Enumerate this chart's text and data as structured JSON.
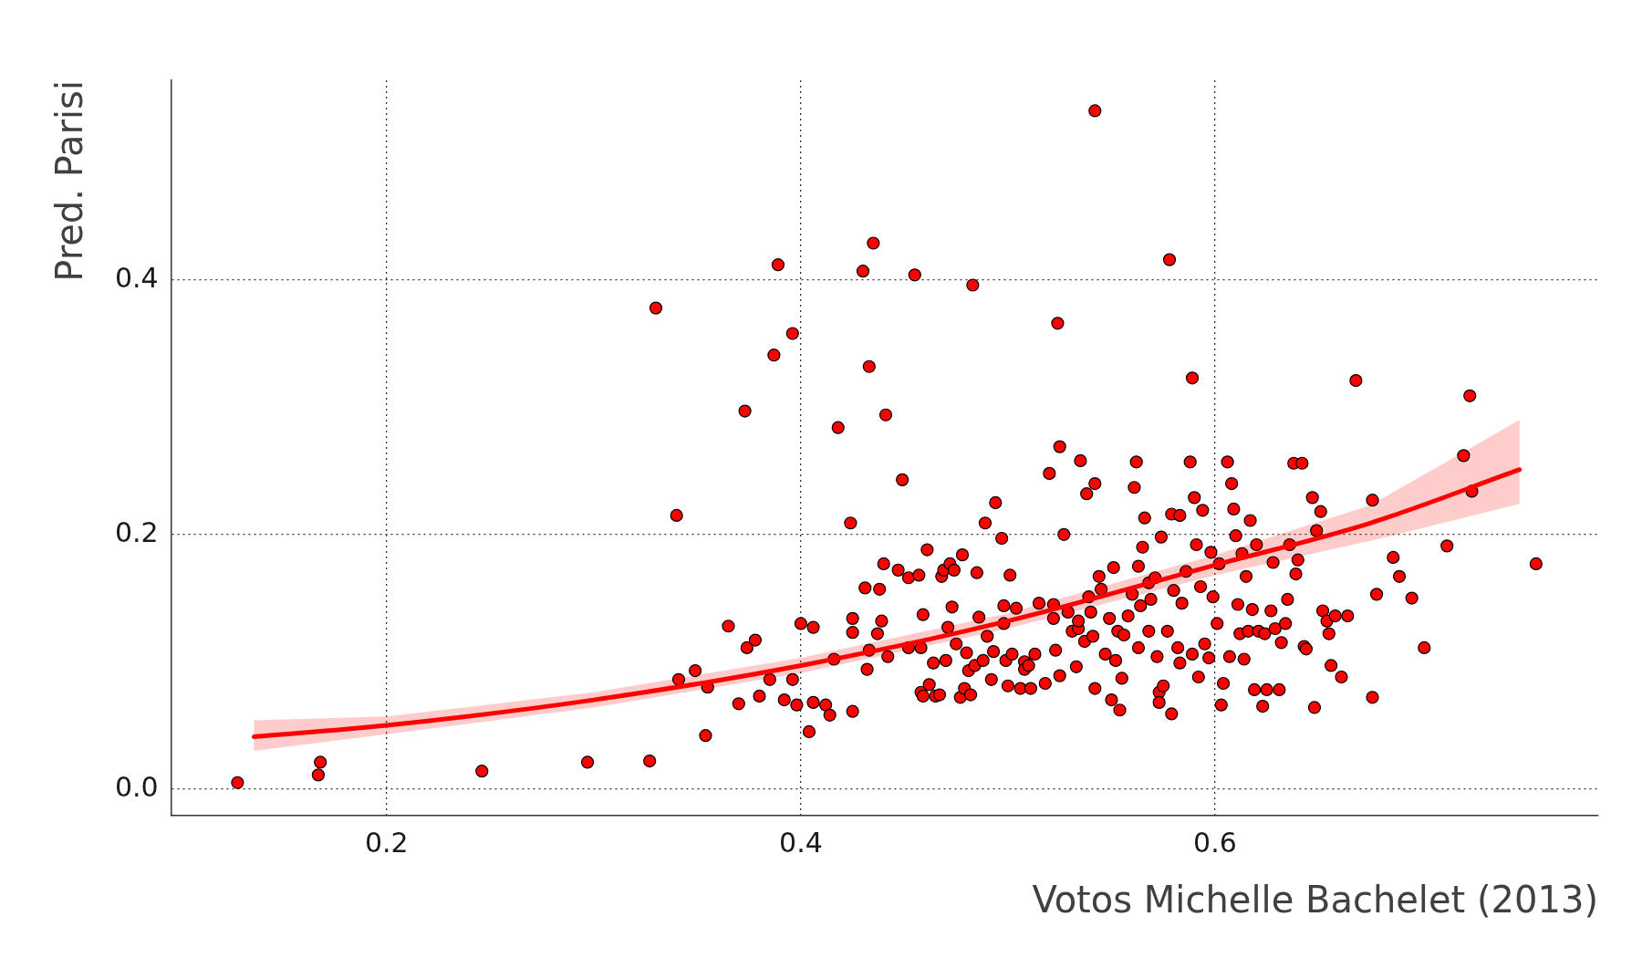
{
  "chart_data": {
    "type": "scatter",
    "xlabel": "Votos Michelle Bachelet (2013)",
    "ylabel": "Pred. Parisi",
    "xlim": [
      0.096,
      0.785
    ],
    "ylim": [
      -0.021,
      0.557
    ],
    "xticks": [
      0.2,
      0.4,
      0.6
    ],
    "yticks": [
      {
        "value": 0,
        "label": "0.0"
      },
      0.2,
      0.4
    ],
    "grid": true,
    "legend": false,
    "series": [
      {
        "color": "#ff0000",
        "marker": "circle",
        "x": [
          0.128,
          0.167,
          0.168,
          0.246,
          0.297,
          0.327,
          0.33,
          0.34,
          0.341,
          0.349,
          0.355,
          0.354,
          0.365,
          0.37,
          0.373,
          0.374,
          0.378,
          0.38,
          0.385,
          0.387,
          0.389,
          0.392,
          0.396,
          0.396,
          0.398,
          0.4,
          0.404,
          0.406,
          0.406,
          0.412,
          0.414,
          0.416,
          0.418,
          0.424,
          0.425,
          0.425,
          0.425,
          0.43,
          0.431,
          0.432,
          0.433,
          0.433,
          0.435,
          0.437,
          0.438,
          0.439,
          0.44,
          0.441,
          0.442,
          0.447,
          0.449,
          0.452,
          0.452,
          0.455,
          0.457,
          0.458,
          0.458,
          0.459,
          0.459,
          0.461,
          0.462,
          0.464,
          0.465,
          0.467,
          0.468,
          0.469,
          0.47,
          0.471,
          0.472,
          0.473,
          0.474,
          0.475,
          0.477,
          0.478,
          0.479,
          0.48,
          0.481,
          0.482,
          0.484,
          0.485,
          0.486,
          0.488,
          0.489,
          0.49,
          0.492,
          0.493,
          0.494,
          0.497,
          0.498,
          0.498,
          0.499,
          0.5,
          0.501,
          0.502,
          0.504,
          0.506,
          0.508,
          0.508,
          0.51,
          0.511,
          0.513,
          0.515,
          0.483,
          0.524,
          0.518,
          0.52,
          0.522,
          0.522,
          0.523,
          0.525,
          0.525,
          0.527,
          0.529,
          0.531,
          0.533,
          0.534,
          0.534,
          0.535,
          0.537,
          0.538,
          0.539,
          0.54,
          0.541,
          0.542,
          0.542,
          0.542,
          0.544,
          0.545,
          0.547,
          0.549,
          0.55,
          0.551,
          0.552,
          0.553,
          0.554,
          0.555,
          0.556,
          0.558,
          0.56,
          0.561,
          0.562,
          0.563,
          0.563,
          0.564,
          0.565,
          0.566,
          0.568,
          0.568,
          0.569,
          0.571,
          0.572,
          0.573,
          0.573,
          0.574,
          0.575,
          0.577,
          0.578,
          0.579,
          0.579,
          0.58,
          0.582,
          0.583,
          0.583,
          0.584,
          0.586,
          0.588,
          0.589,
          0.589,
          0.59,
          0.591,
          0.592,
          0.593,
          0.594,
          0.595,
          0.597,
          0.598,
          0.599,
          0.601,
          0.602,
          0.603,
          0.604,
          0.606,
          0.607,
          0.608,
          0.609,
          0.61,
          0.611,
          0.612,
          0.613,
          0.614,
          0.615,
          0.616,
          0.617,
          0.618,
          0.619,
          0.62,
          0.621,
          0.623,
          0.624,
          0.625,
          0.627,
          0.628,
          0.629,
          0.631,
          0.632,
          0.634,
          0.635,
          0.636,
          0.638,
          0.639,
          0.64,
          0.642,
          0.643,
          0.644,
          0.647,
          0.648,
          0.649,
          0.651,
          0.652,
          0.654,
          0.655,
          0.656,
          0.658,
          0.661,
          0.664,
          0.668,
          0.676,
          0.676,
          0.678,
          0.686,
          0.689,
          0.695,
          0.701,
          0.712,
          0.72,
          0.723,
          0.724,
          0.755
        ],
        "values": [
          0.005,
          0.011,
          0.021,
          0.014,
          0.021,
          0.022,
          0.378,
          0.215,
          0.086,
          0.093,
          0.08,
          0.042,
          0.128,
          0.067,
          0.297,
          0.111,
          0.117,
          0.073,
          0.086,
          0.341,
          0.412,
          0.07,
          0.358,
          0.086,
          0.066,
          0.13,
          0.045,
          0.127,
          0.068,
          0.066,
          0.058,
          0.102,
          0.284,
          0.209,
          0.061,
          0.134,
          0.123,
          0.407,
          0.158,
          0.094,
          0.332,
          0.109,
          0.429,
          0.122,
          0.157,
          0.132,
          0.177,
          0.294,
          0.104,
          0.172,
          0.243,
          0.166,
          0.111,
          0.404,
          0.168,
          0.111,
          0.076,
          0.137,
          0.073,
          0.188,
          0.082,
          0.099,
          0.073,
          0.074,
          0.167,
          0.172,
          0.101,
          0.127,
          0.177,
          0.143,
          0.172,
          0.114,
          0.072,
          0.184,
          0.079,
          0.107,
          0.093,
          0.074,
          0.097,
          0.17,
          0.135,
          0.101,
          0.209,
          0.12,
          0.086,
          0.108,
          0.225,
          0.197,
          0.13,
          0.144,
          0.101,
          0.081,
          0.168,
          0.106,
          0.142,
          0.079,
          0.1,
          0.094,
          0.097,
          0.079,
          0.106,
          0.146,
          0.396,
          0.366,
          0.083,
          0.248,
          0.134,
          0.145,
          0.109,
          0.269,
          0.089,
          0.2,
          0.139,
          0.124,
          0.096,
          0.126,
          0.132,
          0.258,
          0.116,
          0.232,
          0.151,
          0.139,
          0.12,
          0.24,
          0.533,
          0.079,
          0.167,
          0.157,
          0.106,
          0.134,
          0.07,
          0.174,
          0.101,
          0.124,
          0.062,
          0.087,
          0.121,
          0.136,
          0.153,
          0.237,
          0.257,
          0.175,
          0.111,
          0.144,
          0.19,
          0.213,
          0.162,
          0.124,
          0.149,
          0.166,
          0.104,
          0.076,
          0.068,
          0.198,
          0.081,
          0.124,
          0.416,
          0.216,
          0.059,
          0.156,
          0.111,
          0.215,
          0.099,
          0.146,
          0.171,
          0.257,
          0.106,
          0.323,
          0.229,
          0.192,
          0.088,
          0.159,
          0.219,
          0.114,
          0.103,
          0.186,
          0.151,
          0.13,
          0.177,
          0.066,
          0.083,
          0.257,
          0.104,
          0.24,
          0.22,
          0.199,
          0.145,
          0.122,
          0.185,
          0.102,
          0.167,
          0.124,
          0.211,
          0.141,
          0.078,
          0.192,
          0.124,
          0.065,
          0.122,
          0.078,
          0.14,
          0.178,
          0.126,
          0.078,
          0.115,
          0.13,
          0.149,
          0.192,
          0.256,
          0.169,
          0.18,
          0.256,
          0.112,
          0.11,
          0.229,
          0.064,
          0.203,
          0.218,
          0.14,
          0.132,
          0.122,
          0.097,
          0.136,
          0.088,
          0.136,
          0.321,
          0.072,
          0.227,
          0.153,
          0.182,
          0.167,
          0.15,
          0.111,
          0.191,
          0.262,
          0.309,
          0.234,
          0.177
        ]
      },
      {
        "type": "line",
        "marker": "none",
        "color": "#ff0000",
        "x": [
          0.136,
          0.2,
          0.3,
          0.4,
          0.5,
          0.6,
          0.675,
          0.747
        ],
        "values": [
          0.041,
          0.05,
          0.07,
          0.097,
          0.132,
          0.176,
          0.209,
          0.251
        ],
        "lower": [
          0.03,
          0.043,
          0.064,
          0.091,
          0.126,
          0.168,
          0.195,
          0.224
        ],
        "upper": [
          0.054,
          0.057,
          0.076,
          0.103,
          0.138,
          0.184,
          0.223,
          0.29
        ]
      }
    ]
  }
}
